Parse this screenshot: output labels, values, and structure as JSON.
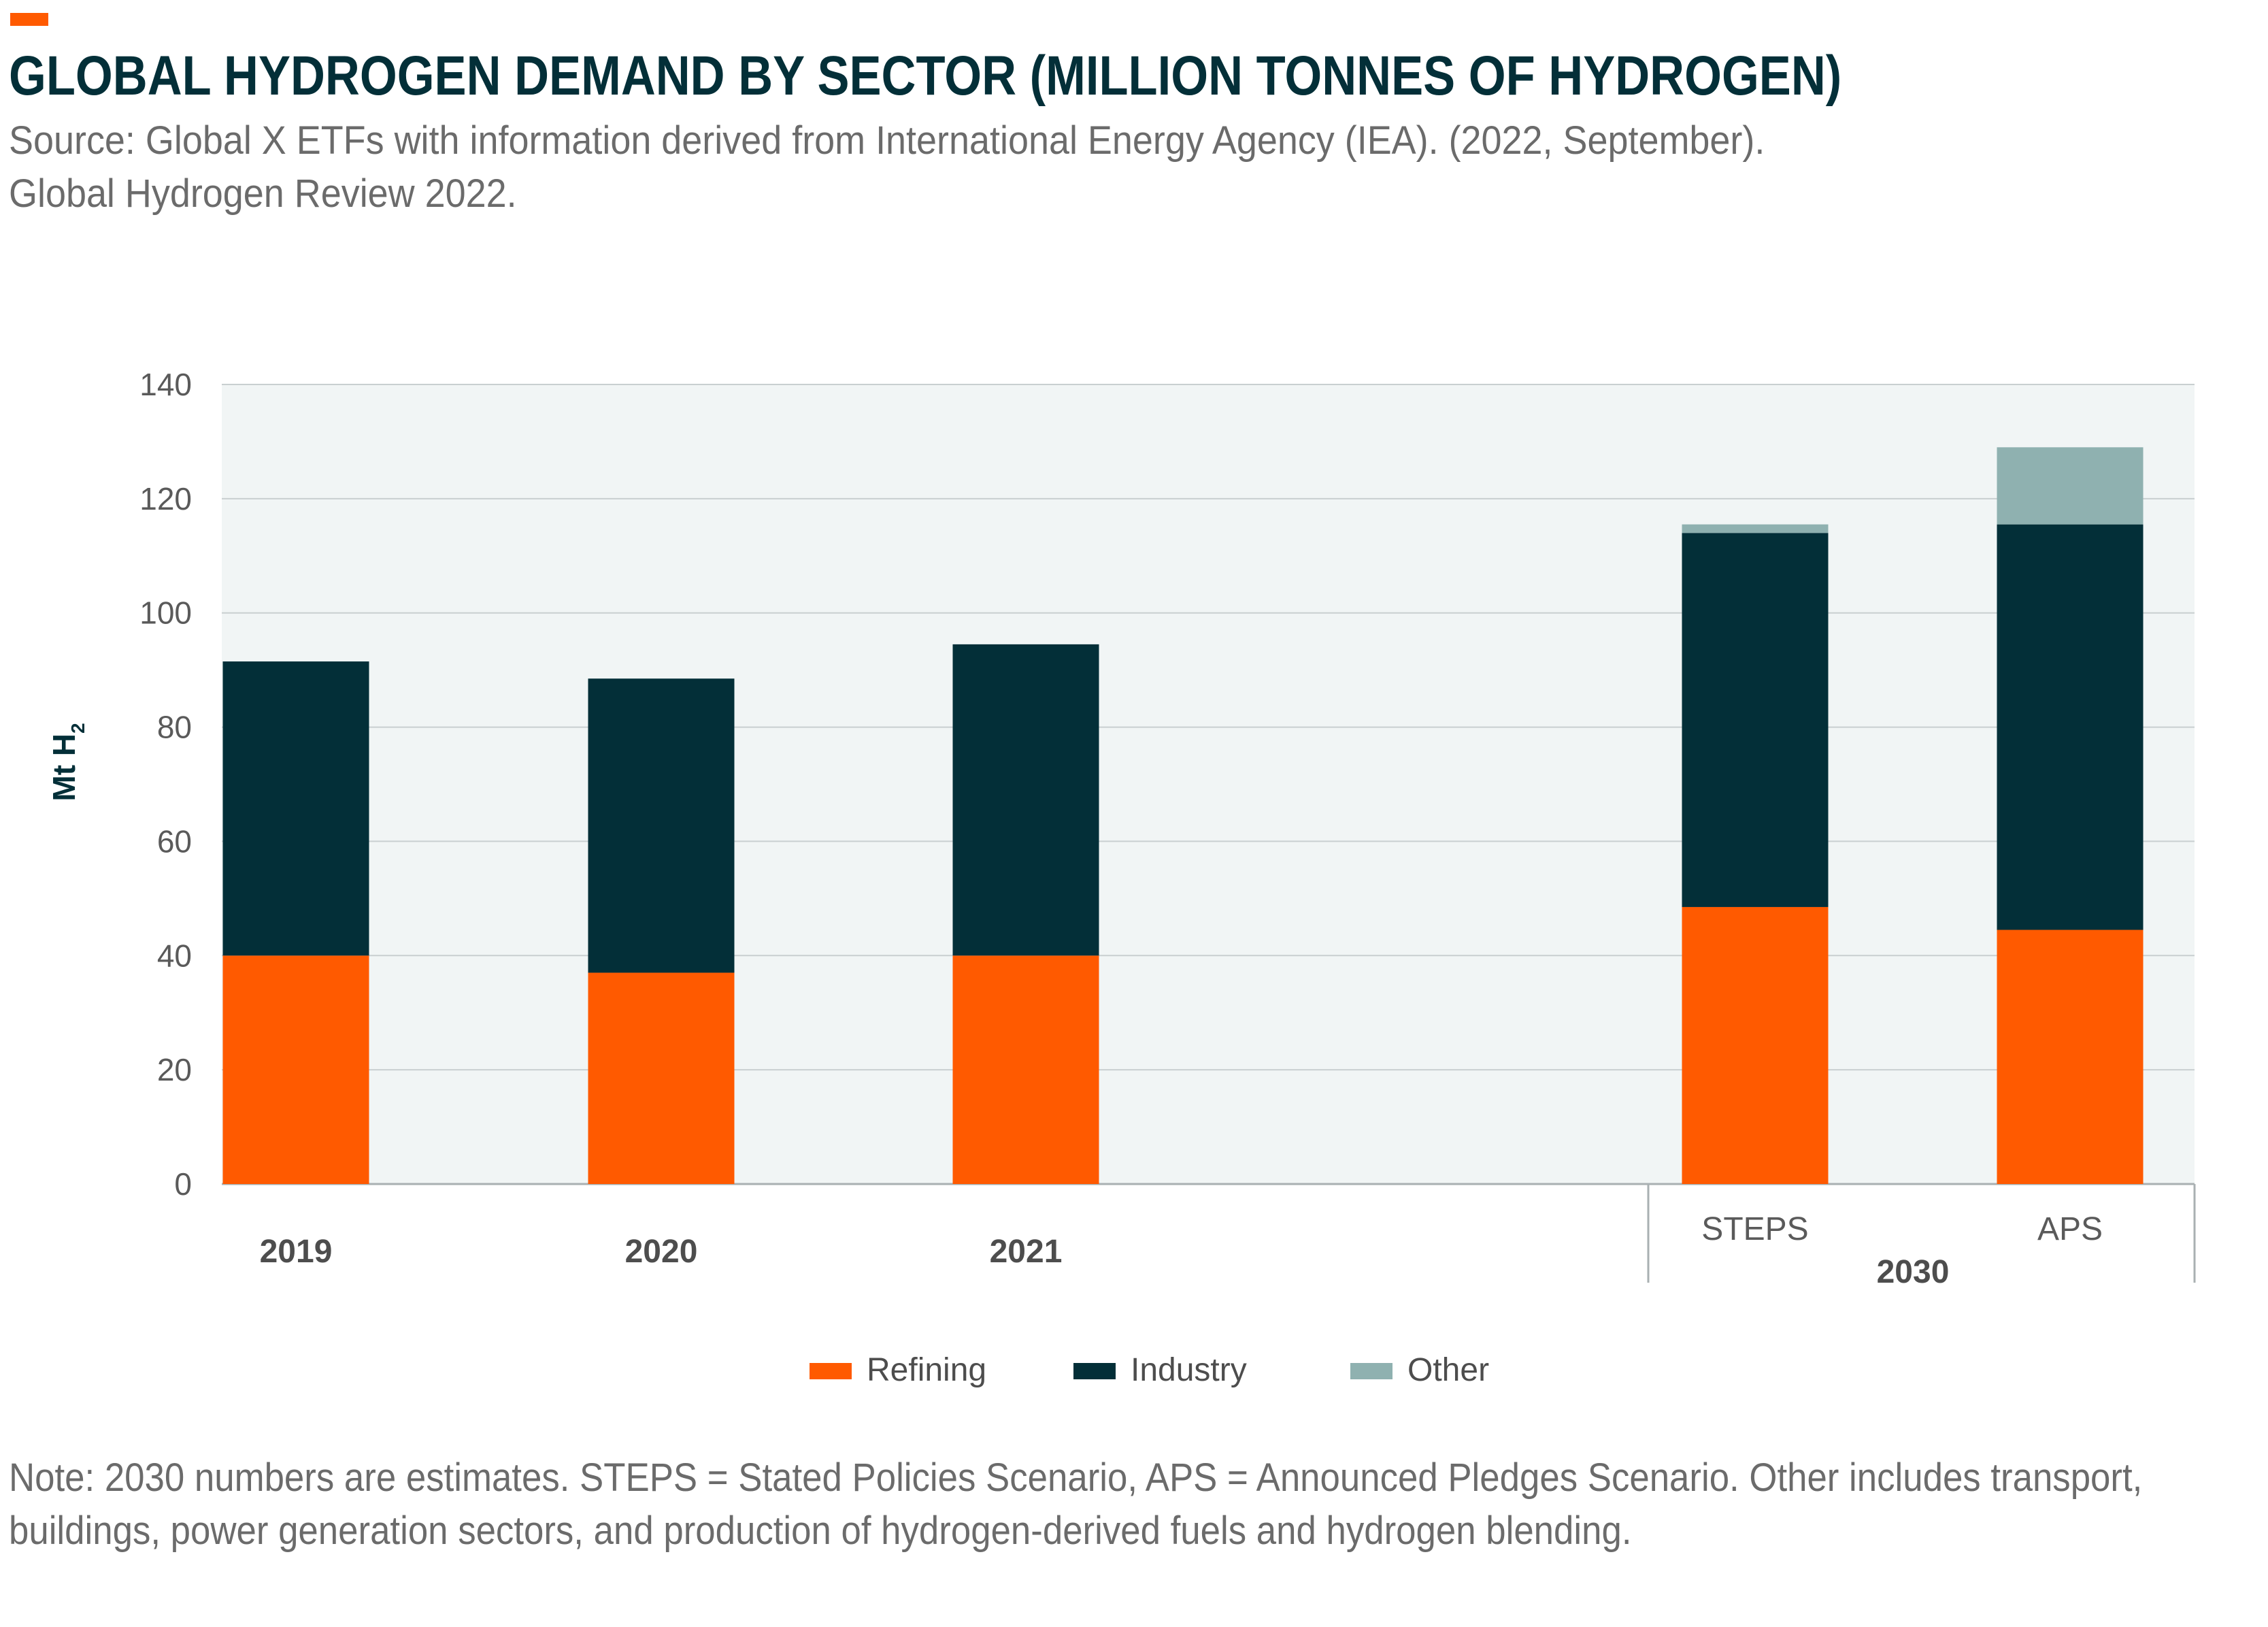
{
  "header": {
    "title": "GLOBAL HYDROGEN DEMAND BY SECTOR (MILLION TONNES OF HYDROGEN)",
    "source": "Source: Global X ETFs with information derived from International Energy Agency (IEA). (2022, September).\nGlobal Hydrogen Review 2022.",
    "accent_color": "#ff5a00"
  },
  "footer": {
    "note": "Note: 2030 numbers are estimates. STEPS = Stated Policies Scenario, APS = Announced Pledges Scenario. Other includes transport, buildings, power generation sectors, and production of hydrogen-derived fuels and hydrogen blending."
  },
  "chart_data": {
    "type": "bar",
    "stacked": true,
    "categories": [
      "2019",
      "2020",
      "2021",
      "STEPS",
      "APS"
    ],
    "group_labels": [
      {
        "label": "2030",
        "categories": [
          "STEPS",
          "APS"
        ]
      }
    ],
    "series": [
      {
        "name": "Refining",
        "color": "#ff5a00",
        "values": [
          40,
          37,
          40,
          48.5,
          44.5
        ]
      },
      {
        "name": "Industry",
        "color": "#032f38",
        "values": [
          51.5,
          51.5,
          54.5,
          65.5,
          71
        ]
      },
      {
        "name": "Other",
        "color": "#8fb1b0",
        "values": [
          0,
          0,
          0,
          1.5,
          13.5
        ]
      }
    ],
    "ylabel": "Mt H",
    "ylabel_subscript": "2",
    "ylim": [
      0,
      140
    ],
    "yticks": [
      0,
      20,
      40,
      60,
      80,
      100,
      120,
      140
    ],
    "grid": true,
    "legend_position": "bottom",
    "plot_background": "#f1f5f5"
  }
}
